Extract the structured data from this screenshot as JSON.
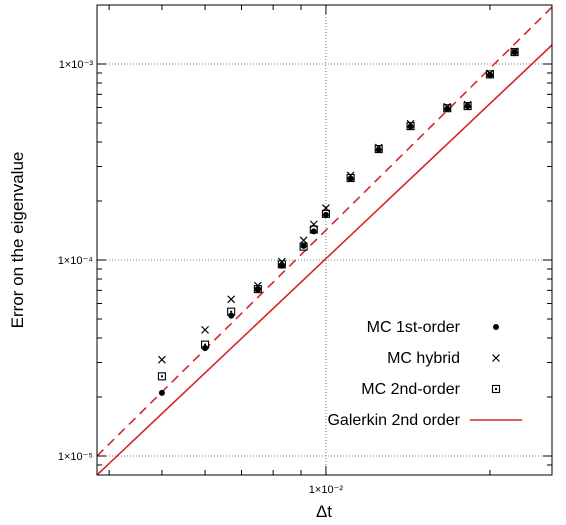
{
  "chart_data": {
    "type": "scatter",
    "xlabel": "Δt",
    "ylabel": "Error on the eigenvalue",
    "x_scale": "log",
    "y_scale": "log",
    "xlim": [
      0.0038,
      0.026
    ],
    "ylim": [
      8e-06,
      0.002
    ],
    "x_ticks": [
      {
        "value": 0.01,
        "label": "1×10⁻²"
      }
    ],
    "y_ticks": [
      {
        "value": 1e-05,
        "label": "1×10⁻⁵"
      },
      {
        "value": 0.0001,
        "label": "1×10⁻⁴"
      },
      {
        "value": 0.001,
        "label": "1×10⁻³"
      }
    ],
    "grid": true,
    "legend_position": "bottom-right",
    "series": [
      {
        "name": "MC 1st-order",
        "marker": "filled-circle",
        "x": [
          0.005,
          0.006,
          0.0067,
          0.0075,
          0.0083,
          0.0091,
          0.0095,
          0.01,
          0.0111,
          0.0125,
          0.0143,
          0.0167,
          0.0182,
          0.02,
          0.0222
        ],
        "y": [
          2.1e-05,
          3.55e-05,
          5.2e-05,
          7.05e-05,
          9.35e-05,
          0.000118,
          0.00014,
          0.00017,
          0.00026,
          0.000365,
          0.00048,
          0.00059,
          0.00061,
          0.00088,
          0.00115
        ]
      },
      {
        "name": "MC hybrid",
        "marker": "cross",
        "x": [
          0.005,
          0.006,
          0.0067,
          0.0075,
          0.0083,
          0.0091,
          0.0095,
          0.01,
          0.0111,
          0.0125,
          0.0143,
          0.0167,
          0.0182,
          0.02,
          0.0222
        ],
        "y": [
          3.1e-05,
          4.4e-05,
          6.3e-05,
          7.4e-05,
          9.8e-05,
          0.000126,
          0.000152,
          0.000184,
          0.00027,
          0.000375,
          0.000495,
          0.000605,
          0.00062,
          0.000895,
          0.00116
        ]
      },
      {
        "name": "MC 2nd-order",
        "marker": "boxed-dot",
        "x": [
          0.005,
          0.006,
          0.0067,
          0.0075,
          0.0083,
          0.0091,
          0.0095,
          0.01,
          0.0111,
          0.0125,
          0.0143,
          0.0167,
          0.0182,
          0.02,
          0.0222
        ],
        "y": [
          2.55e-05,
          3.7e-05,
          5.45e-05,
          7.1e-05,
          9.5e-05,
          0.000117,
          0.000143,
          0.000172,
          0.000262,
          0.000368,
          0.000482,
          0.000595,
          0.00061,
          0.000885,
          0.00115
        ]
      },
      {
        "name": "Galerkin 2nd order",
        "type": "line",
        "style": "solid",
        "color": "#d62728",
        "x": [
          0.0038,
          0.026
        ],
        "y": [
          8e-06,
          0.00125
        ]
      },
      {
        "name": "",
        "type": "line",
        "style": "dashed",
        "color": "#d62728",
        "x": [
          0.0038,
          0.026
        ],
        "y": [
          1e-05,
          0.00195
        ]
      }
    ]
  }
}
